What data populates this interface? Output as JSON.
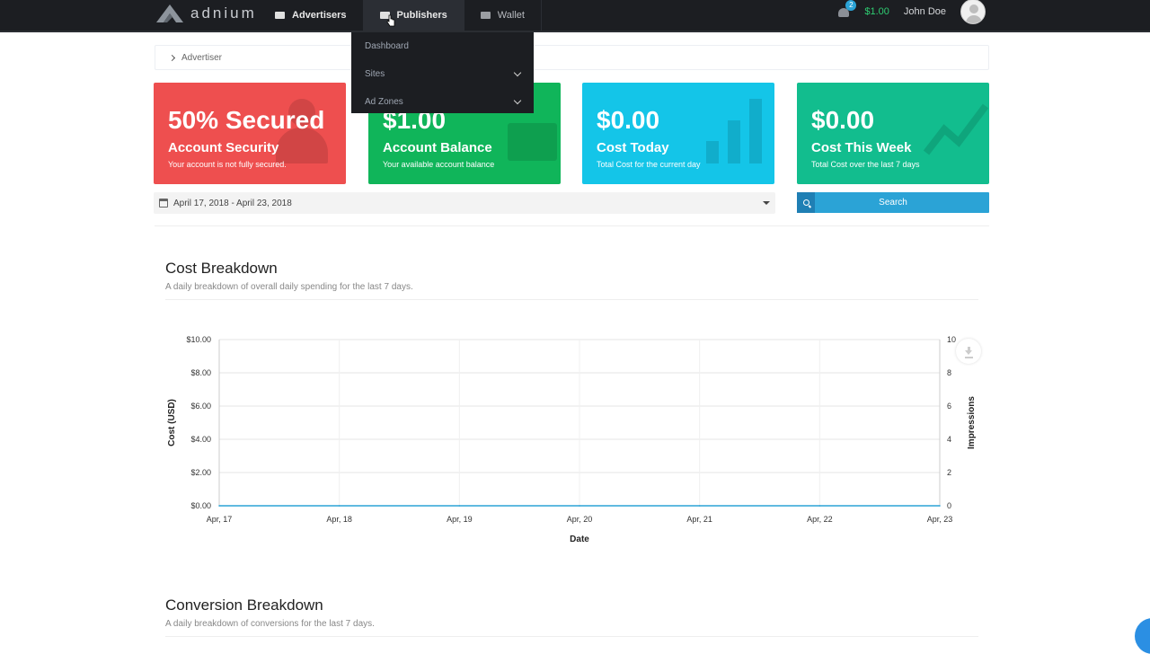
{
  "header": {
    "logo_text": "adnium",
    "nav": [
      {
        "label": "Advertisers",
        "icon": "card-icon"
      },
      {
        "label": "Publishers",
        "icon": "briefcase-icon"
      },
      {
        "label": "Wallet",
        "icon": "wallet-icon"
      }
    ],
    "notification_count": "2",
    "balance": "$1.00",
    "user_name": "John Doe"
  },
  "publishers_menu": {
    "items": [
      {
        "label": "Dashboard",
        "has_submenu": false
      },
      {
        "label": "Sites",
        "has_submenu": true
      },
      {
        "label": "Ad Zones",
        "has_submenu": true
      }
    ]
  },
  "breadcrumb": {
    "label": "Advertiser"
  },
  "cards": [
    {
      "value": "50% Secured",
      "title": "Account Security",
      "subtitle": "Your account is not fully secured.",
      "color": "#ee4f4f"
    },
    {
      "value": "$1.00",
      "title": "Account Balance",
      "subtitle": "Your available account balance",
      "color": "#10b55a"
    },
    {
      "value": "$0.00",
      "title": "Cost Today",
      "subtitle": "Total Cost for the current day",
      "color": "#14c5e8"
    },
    {
      "value": "$0.00",
      "title": "Cost This Week",
      "subtitle": "Total Cost over the last 7 days",
      "color": "#12bd8e"
    }
  ],
  "filters": {
    "date_range": "April 17, 2018 - April 23, 2018",
    "search_label": "Search"
  },
  "sections": {
    "cost": {
      "title": "Cost Breakdown",
      "subtitle": "A daily breakdown of overall daily spending for the last 7 days."
    },
    "conversion": {
      "title": "Conversion Breakdown",
      "subtitle": "A daily breakdown of conversions for the last 7 days."
    }
  },
  "chart_data": {
    "type": "line",
    "categories": [
      "Apr, 17",
      "Apr, 18",
      "Apr, 19",
      "Apr, 20",
      "Apr, 21",
      "Apr, 22",
      "Apr, 23"
    ],
    "series": [
      {
        "values": [
          0,
          0,
          0,
          0,
          0,
          0,
          0
        ]
      }
    ],
    "xlabel": "Date",
    "ylabel": "Cost (USD)",
    "y2label": "Impressions",
    "y_ticks": [
      "$0.00",
      "$2.00",
      "$4.00",
      "$6.00",
      "$8.00",
      "$10.00"
    ],
    "y2_ticks": [
      "0",
      "2",
      "4",
      "6",
      "8",
      "10"
    ],
    "ylim": [
      0,
      10
    ],
    "y2lim": [
      0,
      10
    ],
    "grid": true
  }
}
